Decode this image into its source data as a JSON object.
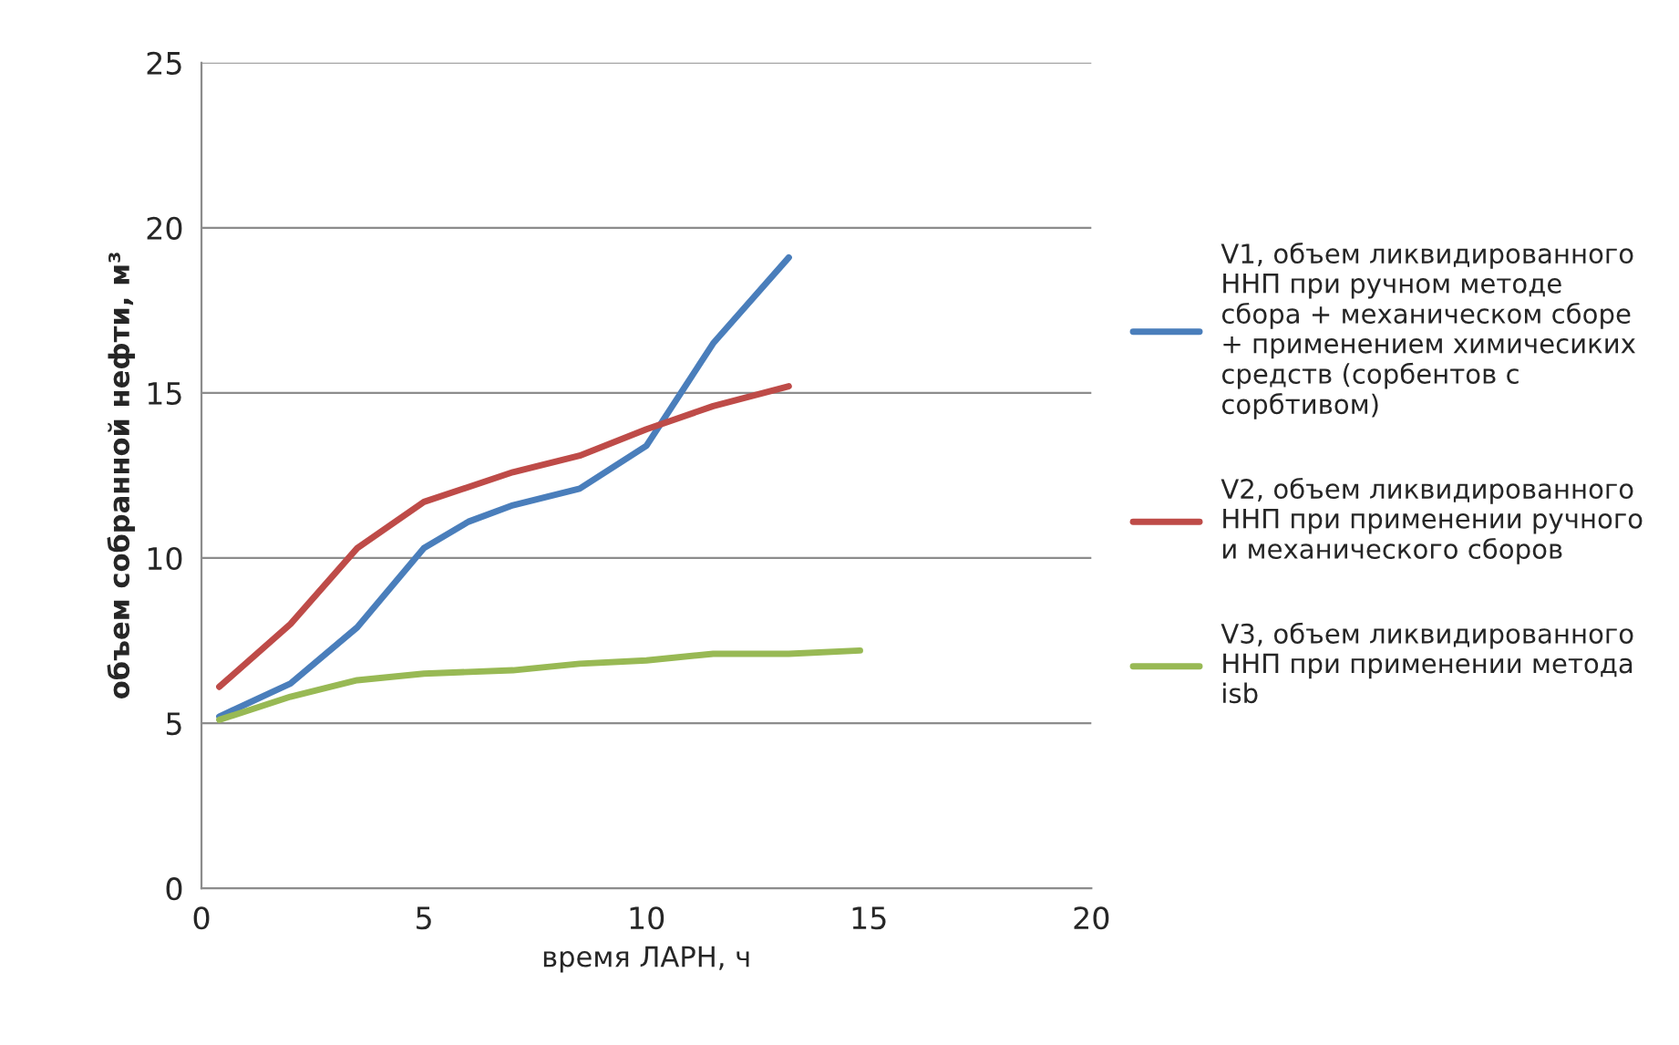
{
  "chart_data": {
    "type": "line",
    "xlabel": "время ЛАРН, ч",
    "ylabel": "объем собранной нефти, м³",
    "xlim": [
      0,
      20
    ],
    "xticks": [
      0,
      5,
      10,
      15,
      20
    ],
    "ylim": [
      0,
      25
    ],
    "yticks": [
      0,
      5,
      10,
      15,
      20,
      25
    ],
    "grid": "y",
    "legend": "right",
    "marker": "none",
    "line_style": "solid",
    "series": [
      {
        "name": "V1, объем ликвидированного ННП при ручном методе сбора + механическом сборе + применением химичесиких средств (сорбентов с сорбтивом)",
        "color": "#4a7ebb",
        "x": [
          0.4,
          2,
          3.5,
          5,
          6,
          7,
          8.5,
          10,
          11.5,
          13.2
        ],
        "values": [
          5.2,
          6.2,
          7.9,
          10.3,
          11.1,
          11.6,
          12.1,
          13.4,
          16.5,
          19.1
        ]
      },
      {
        "name": "V2, объем ликвидированного ННП при применении ручного и механического сборов",
        "color": "#be4b48",
        "x": [
          0.4,
          2,
          3.5,
          5,
          7,
          8.5,
          10,
          11.5,
          13.2
        ],
        "values": [
          6.1,
          8.0,
          10.3,
          11.7,
          12.6,
          13.1,
          13.9,
          14.6,
          15.2
        ]
      },
      {
        "name": "V3, объем ликвидированного ННП при применении метода isb",
        "color": "#98b954",
        "x": [
          0.4,
          2,
          3.5,
          5,
          7,
          8.5,
          10,
          11.5,
          13.2,
          14.8
        ],
        "values": [
          5.1,
          5.8,
          6.3,
          6.5,
          6.6,
          6.8,
          6.9,
          7.1,
          7.1,
          7.2
        ]
      }
    ]
  }
}
